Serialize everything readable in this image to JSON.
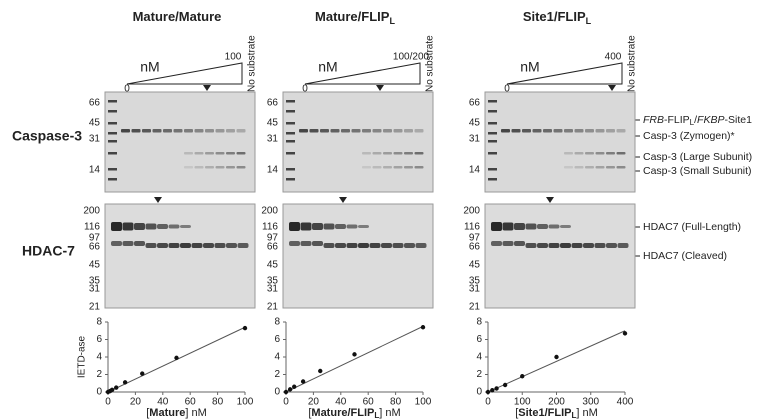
{
  "row_labels": [
    "Caspase-3",
    "HDAC-7"
  ],
  "caspase_mw": [
    "66",
    "45",
    "31",
    "14"
  ],
  "hdac_mw": [
    "200",
    "116",
    "97",
    "66",
    "45",
    "35",
    "31",
    "21"
  ],
  "panels": [
    {
      "title": {
        "name": "Mature/Mature"
      },
      "unit": "nM",
      "start": "0",
      "end": "100",
      "no_substrate": "No substrate"
    },
    {
      "title": {
        "name": "Mature/FLIP",
        "sub": "L"
      },
      "unit": "nM",
      "start": "0",
      "end": "100/200",
      "no_substrate": "No substrate"
    },
    {
      "title": {
        "name": "Site1/FLIP",
        "sub": "L"
      },
      "unit": "nM",
      "start": "0",
      "end": "400",
      "no_substrate": "No substrate"
    }
  ],
  "caspase_labels": {
    "fusion": [
      "FRB",
      "-FLIP",
      "L",
      "/",
      "FKBP",
      "-Site1"
    ],
    "zymogen": "Casp-3 (Zymogen)*",
    "large": "Casp-3 (Large Subunit)",
    "small": "Casp-3 (Small Subunit)"
  },
  "hdac_labels": {
    "full": "HDAC7 (Full-Length)",
    "cleaved": "HDAC7 (Cleaved)"
  },
  "chart_data": [
    {
      "type": "scatter",
      "ylabel": "IETD-ase",
      "xlabel": {
        "open": "[",
        "name": "Mature",
        "close": "] nM"
      },
      "x": [
        0,
        1.5,
        3,
        6,
        12.5,
        25,
        50,
        100
      ],
      "values": [
        0,
        0.1,
        0.25,
        0.5,
        1.1,
        2.1,
        3.9,
        7.3
      ],
      "fit": {
        "x": [
          0,
          100
        ],
        "y": [
          0,
          7.4
        ]
      },
      "xlim": [
        0,
        100
      ],
      "ylim": [
        0,
        8
      ],
      "xticks": [
        0,
        20,
        40,
        60,
        80,
        100
      ],
      "yticks": [
        0,
        2,
        4,
        6,
        8
      ],
      "color": "#111111"
    },
    {
      "type": "scatter",
      "xlabel": {
        "open": "[",
        "name": "Mature/FLIP",
        "sub": "L",
        "close": "] nM"
      },
      "x": [
        0,
        3,
        6,
        12.5,
        25,
        50,
        100
      ],
      "values": [
        0,
        0.3,
        0.6,
        1.2,
        2.4,
        4.3,
        7.4
      ],
      "fit": {
        "x": [
          0,
          100
        ],
        "y": [
          0,
          7.5
        ]
      },
      "xlim": [
        0,
        100
      ],
      "ylim": [
        0,
        8
      ],
      "xticks": [
        0,
        20,
        40,
        60,
        80,
        100
      ],
      "yticks": [
        0,
        2,
        4,
        6,
        8
      ],
      "color": "#111111"
    },
    {
      "type": "scatter",
      "xlabel": {
        "open": "[",
        "name": "Site1/FLIP",
        "sub": "L",
        "close": "] nM"
      },
      "x": [
        0,
        12.5,
        25,
        50,
        100,
        200,
        400
      ],
      "values": [
        0,
        0.2,
        0.4,
        0.8,
        1.8,
        4.0,
        6.7
      ],
      "fit": {
        "x": [
          0,
          400
        ],
        "y": [
          0,
          7.0
        ]
      },
      "xlim": [
        0,
        400
      ],
      "ylim": [
        0,
        8
      ],
      "xticks": [
        0,
        100,
        200,
        300,
        400
      ],
      "yticks": [
        0,
        2,
        4,
        6,
        8
      ],
      "color": "#111111"
    }
  ]
}
